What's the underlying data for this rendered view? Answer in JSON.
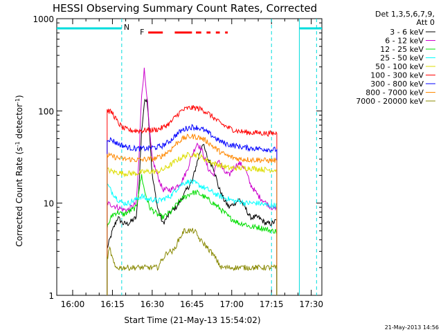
{
  "chart_data": {
    "type": "line",
    "title": "HESSI Observing Summary Count Rates, Corrected",
    "xlabel": "Start Time (21-May-13 15:54:02)",
    "ylabel_main": "Corrected Count Rate (s",
    "ylabel_sup1": "-1",
    "ylabel_mid": " detector",
    "ylabel_sup2": "-1",
    "ylabel_end": ")",
    "y_scale": "log",
    "ylim": [
      1,
      1000
    ],
    "xlim_min": [
      0,
      100
    ],
    "grid": false,
    "legend_position": "top-right",
    "legend_header": [
      "Det 1,3,5,6,7,9,",
      "Att 0"
    ],
    "x_ticks": [
      {
        "m": 6,
        "label": "16:00"
      },
      {
        "m": 21,
        "label": "16:15"
      },
      {
        "m": 36,
        "label": "16:30"
      },
      {
        "m": 51,
        "label": "16:45"
      },
      {
        "m": 66,
        "label": "17:00"
      },
      {
        "m": 81,
        "label": "17:15"
      },
      {
        "m": 96,
        "label": "17:30"
      }
    ],
    "y_ticks": [
      {
        "v": 1,
        "label": "1"
      },
      {
        "v": 10,
        "label": "10"
      },
      {
        "v": 100,
        "label": "100"
      },
      {
        "v": 1000,
        "label": "1000"
      }
    ],
    "flags": {
      "night_label": "N",
      "flare_label": "F",
      "sun_periods": [
        [
          0,
          24.5
        ],
        [
          91.5,
          100
        ]
      ],
      "night_boundaries": [
        24.5,
        81,
        98
      ],
      "flare_segments": [
        [
          34.5,
          40
        ],
        [
          44.5,
          51
        ],
        [
          52.5,
          54.5
        ],
        [
          56.5,
          58
        ],
        [
          60,
          61.5
        ],
        [
          63.5,
          64.5
        ]
      ]
    },
    "series": [
      {
        "name": "3 - 6 keV",
        "color": "#000000",
        "points": [
          [
            19,
            3.2
          ],
          [
            21,
            5
          ],
          [
            23,
            7
          ],
          [
            25,
            6
          ],
          [
            27,
            6
          ],
          [
            30,
            7
          ],
          [
            31,
            15
          ],
          [
            32,
            60
          ],
          [
            33,
            120
          ],
          [
            34,
            140
          ],
          [
            35,
            60
          ],
          [
            36,
            20
          ],
          [
            38,
            9
          ],
          [
            40,
            6
          ],
          [
            43,
            8
          ],
          [
            45,
            9
          ],
          [
            47,
            11
          ],
          [
            49,
            14
          ],
          [
            51,
            17
          ],
          [
            53,
            28
          ],
          [
            55,
            45
          ],
          [
            57,
            30
          ],
          [
            59,
            25
          ],
          [
            61,
            15
          ],
          [
            63,
            11
          ],
          [
            65,
            9
          ],
          [
            67,
            10
          ],
          [
            69,
            11
          ],
          [
            71,
            9
          ],
          [
            73,
            7
          ],
          [
            76,
            7
          ],
          [
            79,
            6
          ],
          [
            81,
            6
          ],
          [
            83,
            6.5
          ]
        ]
      },
      {
        "name": "6 - 12 keV",
        "color": "#cc00cc",
        "points": [
          [
            19,
            10
          ],
          [
            21,
            9.5
          ],
          [
            23,
            9
          ],
          [
            25,
            8.5
          ],
          [
            27,
            8.5
          ],
          [
            30,
            10
          ],
          [
            31,
            30
          ],
          [
            32,
            150
          ],
          [
            33,
            280
          ],
          [
            34,
            150
          ],
          [
            35,
            60
          ],
          [
            36,
            30
          ],
          [
            38,
            20
          ],
          [
            40,
            14
          ],
          [
            43,
            14
          ],
          [
            45,
            15
          ],
          [
            47,
            17
          ],
          [
            49,
            22
          ],
          [
            51,
            33
          ],
          [
            53,
            45
          ],
          [
            55,
            36
          ],
          [
            57,
            24
          ],
          [
            59,
            20
          ],
          [
            61,
            30
          ],
          [
            63,
            22
          ],
          [
            65,
            20
          ],
          [
            67,
            25
          ],
          [
            69,
            27
          ],
          [
            71,
            24
          ],
          [
            73,
            16
          ],
          [
            76,
            12
          ],
          [
            79,
            10
          ],
          [
            81,
            9
          ],
          [
            83,
            8.5
          ]
        ]
      },
      {
        "name": "12 - 25 keV",
        "color": "#00dd00",
        "points": [
          [
            19,
            5.5
          ],
          [
            21,
            7.5
          ],
          [
            23,
            8
          ],
          [
            25,
            7.5
          ],
          [
            27,
            8
          ],
          [
            30,
            9
          ],
          [
            31,
            14
          ],
          [
            32,
            20
          ],
          [
            33,
            14
          ],
          [
            35,
            9
          ],
          [
            38,
            7.5
          ],
          [
            40,
            7
          ],
          [
            43,
            8
          ],
          [
            45,
            9.5
          ],
          [
            47,
            11
          ],
          [
            49,
            12
          ],
          [
            51,
            13
          ],
          [
            53,
            13
          ],
          [
            55,
            12
          ],
          [
            57,
            11
          ],
          [
            59,
            10
          ],
          [
            61,
            9
          ],
          [
            63,
            8
          ],
          [
            65,
            7
          ],
          [
            67,
            6.5
          ],
          [
            69,
            6
          ],
          [
            71,
            6
          ],
          [
            73,
            5.5
          ],
          [
            76,
            5.5
          ],
          [
            79,
            5.2
          ],
          [
            81,
            5
          ],
          [
            83,
            5
          ]
        ]
      },
      {
        "name": "25 - 50 keV",
        "color": "#00ffff",
        "points": [
          [
            19,
            16
          ],
          [
            21,
            13
          ],
          [
            23,
            11
          ],
          [
            25,
            10
          ],
          [
            27,
            10
          ],
          [
            30,
            11
          ],
          [
            32,
            12
          ],
          [
            34,
            11
          ],
          [
            36,
            11
          ],
          [
            38,
            10.5
          ],
          [
            40,
            11
          ],
          [
            43,
            12
          ],
          [
            45,
            14
          ],
          [
            47,
            16
          ],
          [
            49,
            17
          ],
          [
            51,
            17
          ],
          [
            53,
            16
          ],
          [
            55,
            15
          ],
          [
            57,
            14
          ],
          [
            59,
            13
          ],
          [
            61,
            12
          ],
          [
            63,
            11.5
          ],
          [
            65,
            11
          ],
          [
            67,
            10.5
          ],
          [
            69,
            10.5
          ],
          [
            71,
            10
          ],
          [
            73,
            10
          ],
          [
            76,
            10
          ],
          [
            79,
            9.5
          ],
          [
            81,
            9.5
          ],
          [
            83,
            9.5
          ]
        ]
      },
      {
        "name": "50 - 100 keV",
        "color": "#dddd00",
        "points": [
          [
            19,
            23
          ],
          [
            21,
            22
          ],
          [
            23,
            21.5
          ],
          [
            25,
            21
          ],
          [
            27,
            21
          ],
          [
            30,
            21
          ],
          [
            32,
            21.5
          ],
          [
            34,
            22
          ],
          [
            36,
            22
          ],
          [
            38,
            22
          ],
          [
            40,
            23
          ],
          [
            43,
            26
          ],
          [
            45,
            29
          ],
          [
            47,
            31
          ],
          [
            49,
            33
          ],
          [
            51,
            34
          ],
          [
            53,
            33
          ],
          [
            55,
            31
          ],
          [
            57,
            29
          ],
          [
            59,
            27
          ],
          [
            61,
            26
          ],
          [
            63,
            25
          ],
          [
            65,
            24
          ],
          [
            67,
            24
          ],
          [
            69,
            24
          ],
          [
            71,
            24
          ],
          [
            73,
            24
          ],
          [
            76,
            23.5
          ],
          [
            79,
            23
          ],
          [
            81,
            23
          ],
          [
            83,
            23
          ]
        ]
      },
      {
        "name": "100 - 300 keV",
        "color": "#ff0000",
        "points": [
          [
            19,
            102
          ],
          [
            21,
            95
          ],
          [
            23,
            75
          ],
          [
            25,
            65
          ],
          [
            27,
            62
          ],
          [
            30,
            61
          ],
          [
            32,
            61
          ],
          [
            34,
            62
          ],
          [
            36,
            62
          ],
          [
            38,
            63
          ],
          [
            40,
            66
          ],
          [
            43,
            75
          ],
          [
            45,
            88
          ],
          [
            47,
            100
          ],
          [
            49,
            106
          ],
          [
            51,
            108
          ],
          [
            53,
            107
          ],
          [
            55,
            103
          ],
          [
            57,
            95
          ],
          [
            59,
            85
          ],
          [
            61,
            76
          ],
          [
            63,
            70
          ],
          [
            65,
            65
          ],
          [
            67,
            62
          ],
          [
            69,
            60
          ],
          [
            71,
            59
          ],
          [
            73,
            58
          ],
          [
            76,
            58
          ],
          [
            79,
            57
          ],
          [
            81,
            57
          ],
          [
            83,
            57
          ]
        ]
      },
      {
        "name": "300 - 800 keV",
        "color": "#0000ff",
        "points": [
          [
            19,
            50
          ],
          [
            21,
            48
          ],
          [
            23,
            44
          ],
          [
            25,
            42
          ],
          [
            27,
            40
          ],
          [
            30,
            39
          ],
          [
            32,
            39
          ],
          [
            34,
            39
          ],
          [
            36,
            40
          ],
          [
            38,
            40.5
          ],
          [
            40,
            42
          ],
          [
            43,
            48
          ],
          [
            45,
            55
          ],
          [
            47,
            61
          ],
          [
            49,
            65
          ],
          [
            51,
            67
          ],
          [
            53,
            66
          ],
          [
            55,
            63
          ],
          [
            57,
            58
          ],
          [
            59,
            53
          ],
          [
            61,
            48
          ],
          [
            63,
            45
          ],
          [
            65,
            43
          ],
          [
            67,
            42
          ],
          [
            69,
            41
          ],
          [
            71,
            40
          ],
          [
            73,
            39.5
          ],
          [
            76,
            39
          ],
          [
            79,
            38.5
          ],
          [
            81,
            38
          ],
          [
            83,
            38
          ]
        ]
      },
      {
        "name": "800 - 7000 keV",
        "color": "#ff8800",
        "points": [
          [
            19,
            33
          ],
          [
            21,
            32
          ],
          [
            23,
            31
          ],
          [
            25,
            30
          ],
          [
            27,
            30
          ],
          [
            30,
            29.5
          ],
          [
            32,
            29.5
          ],
          [
            34,
            30
          ],
          [
            36,
            30
          ],
          [
            38,
            31
          ],
          [
            40,
            33
          ],
          [
            43,
            38
          ],
          [
            45,
            44
          ],
          [
            47,
            49
          ],
          [
            49,
            52
          ],
          [
            51,
            53
          ],
          [
            53,
            52
          ],
          [
            55,
            50
          ],
          [
            57,
            46
          ],
          [
            59,
            41
          ],
          [
            61,
            37
          ],
          [
            63,
            34
          ],
          [
            65,
            32
          ],
          [
            67,
            31
          ],
          [
            69,
            30
          ],
          [
            71,
            30
          ],
          [
            73,
            29.5
          ],
          [
            76,
            29.5
          ],
          [
            79,
            29
          ],
          [
            81,
            29
          ],
          [
            83,
            29
          ]
        ]
      },
      {
        "name": "7000 - 20000 keV",
        "color": "#888800",
        "points": [
          [
            19,
            2.5
          ],
          [
            20,
            3.2
          ],
          [
            21,
            2.5
          ],
          [
            22,
            2
          ],
          [
            24,
            2
          ],
          [
            27,
            2
          ],
          [
            30,
            2
          ],
          [
            33,
            2
          ],
          [
            36,
            2
          ],
          [
            38,
            2
          ],
          [
            40,
            2.5
          ],
          [
            42,
            3
          ],
          [
            44,
            3
          ],
          [
            46,
            4
          ],
          [
            48,
            5
          ],
          [
            50,
            5
          ],
          [
            52,
            5
          ],
          [
            54,
            4
          ],
          [
            56,
            3.5
          ],
          [
            58,
            3
          ],
          [
            60,
            2.5
          ],
          [
            62,
            2
          ],
          [
            64,
            2
          ],
          [
            66,
            2
          ],
          [
            68,
            2
          ],
          [
            70,
            2
          ],
          [
            72,
            2
          ],
          [
            75,
            2
          ],
          [
            78,
            2
          ],
          [
            81,
            2
          ],
          [
            83,
            2
          ]
        ]
      }
    ]
  },
  "footer": {
    "timestamp": "21-May-2013 14:56"
  }
}
